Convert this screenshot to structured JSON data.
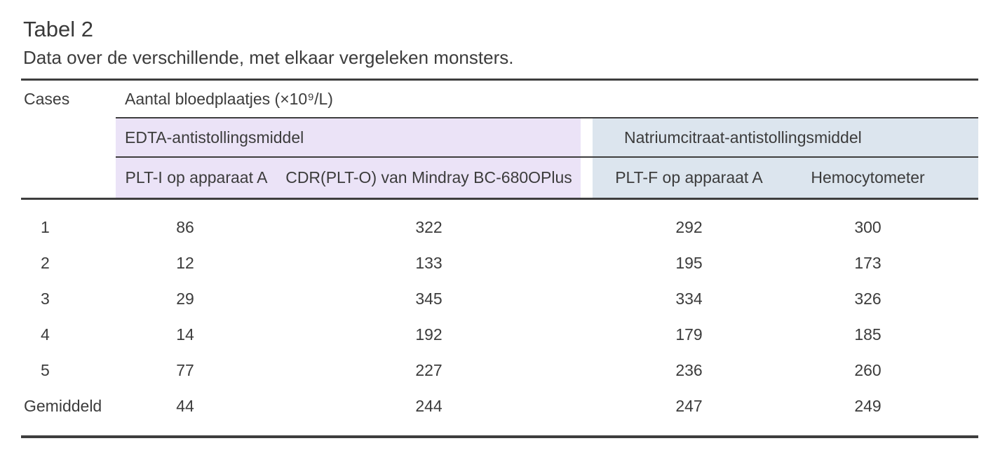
{
  "title": "Tabel 2",
  "subtitle": "Data over de verschillende, met elkaar vergeleken monsters.",
  "colors": {
    "edta_band": "#ebe3f7",
    "citrate_band": "#dce5ee",
    "rule": "#3e3e3e",
    "text": "#3c3c3c"
  },
  "table": {
    "cases_header": "Cases",
    "measure_header": "Aantal bloedplaatjes (×10⁹/L)",
    "group_edta": {
      "label": "EDTA-antistollingsmiddel",
      "bg": "#ebe3f7",
      "col1": "PLT-I op apparaat A",
      "col2": "CDR(PLT-O) van Mindray BC-680OPlus"
    },
    "group_citrate": {
      "label": "Natriumcitraat-antistollingsmiddel",
      "bg": "#dce5ee",
      "col1": "PLT-F op apparaat A",
      "col2": "Hemocytometer"
    },
    "rows": [
      {
        "label": "1",
        "v1": "86",
        "v2": "322",
        "v3": "292",
        "v4": "300"
      },
      {
        "label": "2",
        "v1": "12",
        "v2": "133",
        "v3": "195",
        "v4": "173"
      },
      {
        "label": "3",
        "v1": "29",
        "v2": "345",
        "v3": "334",
        "v4": "326"
      },
      {
        "label": "4",
        "v1": "14",
        "v2": "192",
        "v3": "179",
        "v4": "185"
      },
      {
        "label": "5",
        "v1": "77",
        "v2": "227",
        "v3": "236",
        "v4": "260"
      },
      {
        "label": "Gemiddeld",
        "v1": "44",
        "v2": "244",
        "v3": "247",
        "v4": "249"
      }
    ]
  },
  "chart_data": {
    "type": "table",
    "title": "Tabel 2 — Data over de verschillende, met elkaar vergeleken monsters.",
    "columns": [
      "Cases",
      "PLT-I op apparaat A (EDTA)",
      "CDR(PLT-O) van Mindray BC-680OPlus (EDTA)",
      "PLT-F op apparaat A (Natriumcitraat)",
      "Hemocytometer (Natriumcitraat)"
    ],
    "unit": "Aantal bloedplaatjes (×10⁹/L)",
    "rows": [
      [
        "1",
        86,
        322,
        292,
        300
      ],
      [
        "2",
        12,
        133,
        195,
        173
      ],
      [
        "3",
        29,
        345,
        334,
        326
      ],
      [
        "4",
        14,
        192,
        179,
        185
      ],
      [
        "5",
        77,
        227,
        236,
        260
      ],
      [
        "Gemiddeld",
        44,
        244,
        247,
        249
      ]
    ]
  }
}
